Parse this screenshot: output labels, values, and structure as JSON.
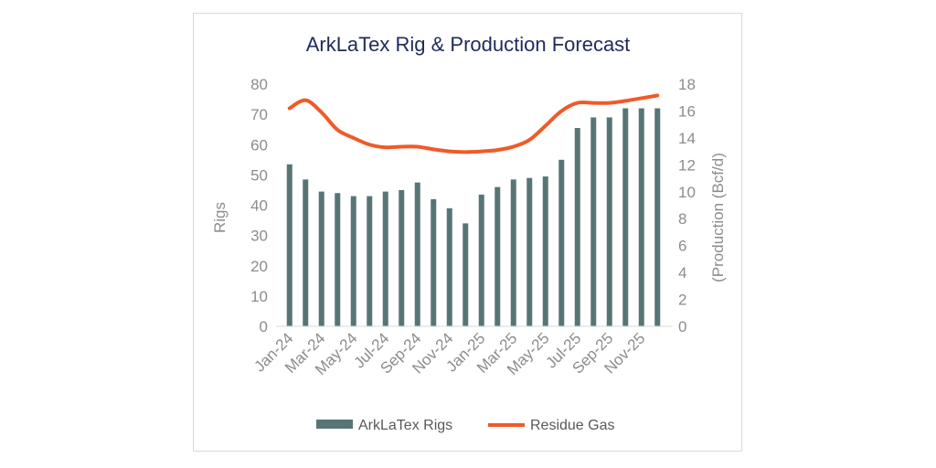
{
  "chart_data": {
    "type": "bar+line",
    "title": "ArkLaTex Rig & Production Forecast",
    "y_left_label": "Rigs",
    "y_right_label": "(Production (Bcf/d)",
    "y_left_lim": [
      0,
      80
    ],
    "y_left_ticks": [
      "0",
      "10",
      "20",
      "30",
      "40",
      "50",
      "60",
      "70",
      "80"
    ],
    "y_right_lim": [
      0,
      18
    ],
    "y_right_ticks": [
      "0",
      "2",
      "4",
      "6",
      "8",
      "10",
      "12",
      "14",
      "16",
      "18"
    ],
    "categories": [
      "Jan-24",
      "Feb-24",
      "Mar-24",
      "Apr-24",
      "May-24",
      "Jun-24",
      "Jul-24",
      "Aug-24",
      "Sep-24",
      "Oct-24",
      "Nov-24",
      "Dec-24",
      "Jan-25",
      "Feb-25",
      "Mar-25",
      "Apr-25",
      "May-25",
      "Jun-25",
      "Jul-25",
      "Aug-25",
      "Sep-25",
      "Oct-25",
      "Nov-25",
      "Dec-25"
    ],
    "x_tick_labels": [
      "Jan-24",
      "Mar-24",
      "May-24",
      "Jul-24",
      "Sep-24",
      "Nov-24",
      "Jan-25",
      "Mar-25",
      "May-25",
      "Jul-25",
      "Sep-25",
      "Nov-25"
    ],
    "series": [
      {
        "name": "ArkLaTex Rigs",
        "type": "bar",
        "axis": "left",
        "color": "#587575",
        "values": [
          53.5,
          48.5,
          44.5,
          44,
          43,
          43,
          44.5,
          45,
          47.5,
          42,
          39,
          34,
          43.5,
          46,
          48.5,
          49,
          49.5,
          55,
          65.5,
          69,
          69,
          72,
          72,
          72
        ]
      },
      {
        "name": "Residue Gas",
        "type": "line",
        "axis": "right",
        "color": "#f05a28",
        "values": [
          16.2,
          16.8,
          15.9,
          14.6,
          14.0,
          13.5,
          13.3,
          13.35,
          13.35,
          13.15,
          13.0,
          12.95,
          13.0,
          13.1,
          13.35,
          13.85,
          14.9,
          16.0,
          16.6,
          16.6,
          16.6,
          16.75,
          16.95,
          17.15
        ]
      }
    ],
    "grid": false,
    "legend_position": "bottom"
  }
}
